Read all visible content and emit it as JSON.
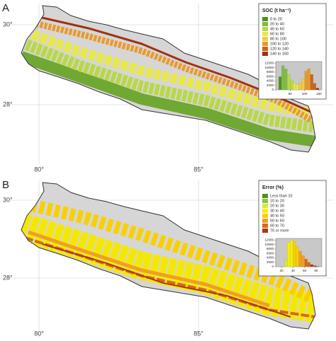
{
  "panels": [
    {
      "label": "A",
      "lat_ticks": [
        "30°",
        "28°"
      ],
      "lon_ticks": [
        "80°",
        "85°"
      ],
      "legend": {
        "title": "SOC (t ha⁻¹)",
        "items": [
          {
            "label": "0 to 20",
            "color": "#4d9221"
          },
          {
            "label": "20 to 40",
            "color": "#7fbc41"
          },
          {
            "label": "40 to 60",
            "color": "#b8d84a"
          },
          {
            "label": "60 to 80",
            "color": "#e8e84a"
          },
          {
            "label": "80 to 100",
            "color": "#f5c842"
          },
          {
            "label": "100 to 120",
            "color": "#e89a2a"
          },
          {
            "label": "120 to 140",
            "color": "#c8641e"
          },
          {
            "label": "140 to 160",
            "color": "#a03214"
          }
        ]
      },
      "histogram": {
        "bins": [
          10,
          20,
          30,
          40,
          50,
          60,
          70,
          80,
          90,
          100,
          110,
          120,
          130,
          140,
          150
        ],
        "counts": [
          6000,
          11000,
          9500,
          7000,
          4500,
          3000,
          2500,
          3000,
          5000,
          8500,
          9500,
          7000,
          3000,
          800
        ],
        "colors": [
          "#4d9221",
          "#7fbc41",
          "#7fbc41",
          "#b8d84a",
          "#b8d84a",
          "#e8e84a",
          "#e8e84a",
          "#f5c842",
          "#f5c842",
          "#e89a2a",
          "#e89a2a",
          "#c8641e",
          "#c8641e",
          "#a03214"
        ],
        "xlim": [
          0,
          160
        ],
        "ylim": [
          0,
          12800
        ],
        "xticks": [
          50,
          100,
          150
        ],
        "yticks": [
          0,
          2000,
          4000,
          6000,
          8000,
          10000,
          12000
        ]
      }
    },
    {
      "label": "B",
      "lat_ticks": [
        "30°",
        "28°"
      ],
      "lon_ticks": [
        "80°",
        "85°"
      ],
      "legend": {
        "title": "Error (%)",
        "items": [
          {
            "label": "Less than 10",
            "color": "#4d9221"
          },
          {
            "label": "10 to 20",
            "color": "#8cc43c"
          },
          {
            "label": "20 to 30",
            "color": "#d8e83a"
          },
          {
            "label": "30 to 40",
            "color": "#f5f000"
          },
          {
            "label": "40 to 50",
            "color": "#f8d000"
          },
          {
            "label": "50 to 60",
            "color": "#f0a020"
          },
          {
            "label": "60 to 70",
            "color": "#d86a10"
          },
          {
            "label": "70 or more",
            "color": "#a83a10"
          }
        ]
      },
      "histogram": {
        "bins": [
          25,
          30,
          35,
          40,
          45,
          50,
          55,
          60,
          65,
          70,
          75,
          80,
          85
        ],
        "counts": [
          3000,
          11000,
          12000,
          11500,
          9000,
          7000,
          5000,
          3500,
          2000,
          1000,
          500,
          200
        ],
        "colors": [
          "#d8e83a",
          "#f5f000",
          "#f5f000",
          "#f8d000",
          "#f8d000",
          "#f0a020",
          "#f0a020",
          "#d86a10",
          "#d86a10",
          "#a83a10",
          "#a83a10",
          "#a83a10"
        ],
        "xlim": [
          10,
          90
        ],
        "ylim": [
          0,
          12800
        ],
        "xticks": [
          20,
          40,
          60,
          80
        ],
        "yticks": [
          0,
          2000,
          4000,
          6000,
          8000,
          10000,
          12000
        ]
      }
    }
  ]
}
